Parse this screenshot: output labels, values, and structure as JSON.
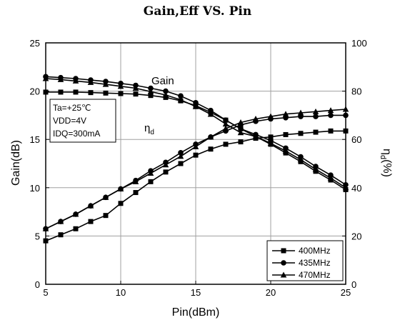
{
  "chart_data": {
    "type": "line",
    "title": "Gain,Eff  VS. Pin",
    "xlabel": "Pin(dBm)",
    "ylabel_left": "Gain(dB)",
    "ylabel_right_main": "η",
    "ylabel_right_sub": "d",
    "ylabel_right_suffix": "(%)",
    "xlim": [
      5,
      25
    ],
    "ylim_left": [
      0,
      25
    ],
    "ylim_right": [
      0,
      100
    ],
    "x_ticks": [
      "5",
      "10",
      "15",
      "20",
      "25"
    ],
    "y_left_ticks": [
      "0",
      "5",
      "10",
      "15",
      "20",
      "25"
    ],
    "y_right_ticks": [
      "0",
      "20",
      "40",
      "60",
      "80",
      "100"
    ],
    "grid": true,
    "legend_position": "bottom-right",
    "conditions": [
      "Ta=+25℃",
      "VDD=4V",
      "IDQ=300mA"
    ],
    "annotations": {
      "gain": "Gain",
      "eff_main": "η",
      "eff_sub": "d"
    },
    "x": [
      5,
      6,
      7,
      8,
      9,
      10,
      11,
      12,
      13,
      14,
      15,
      16,
      17,
      18,
      19,
      20,
      21,
      22,
      23,
      24,
      25
    ],
    "series": [
      {
        "name": "400MHz",
        "marker": "square",
        "gain": [
          19.9,
          19.9,
          19.9,
          19.85,
          19.8,
          19.75,
          19.7,
          19.55,
          19.35,
          19.0,
          18.5,
          17.8,
          17.0,
          16.1,
          15.3,
          14.5,
          13.6,
          12.7,
          11.7,
          10.8,
          9.8
        ],
        "eff": [
          18,
          20.5,
          23,
          26,
          28.5,
          33.5,
          38,
          42.5,
          46.5,
          50,
          53.5,
          56,
          58,
          59,
          60.5,
          61,
          62,
          62.5,
          63,
          63.5,
          63.5
        ]
      },
      {
        "name": "435MHz",
        "marker": "circle",
        "gain": [
          21.5,
          21.4,
          21.3,
          21.15,
          21.0,
          20.8,
          20.6,
          20.3,
          20.0,
          19.5,
          18.8,
          18.0,
          17.0,
          16.1,
          15.5,
          14.9,
          14.1,
          13.2,
          12.2,
          11.3,
          10.3
        ],
        "eff": [
          23,
          26,
          29,
          32.5,
          36,
          39.5,
          43,
          47,
          50.5,
          54.5,
          58,
          61,
          63.5,
          66,
          67.5,
          68.5,
          69,
          69.5,
          69.5,
          70,
          70
        ]
      },
      {
        "name": "470MHz",
        "marker": "triangle",
        "gain": [
          21.3,
          21.2,
          21.05,
          20.9,
          20.7,
          20.5,
          20.3,
          19.95,
          19.6,
          19.1,
          18.4,
          17.6,
          16.6,
          15.7,
          15.3,
          14.6,
          13.8,
          12.9,
          11.9,
          11.0,
          10.0
        ],
        "eff": [
          23,
          26,
          29,
          32.5,
          36,
          39.5,
          42.5,
          46,
          49.5,
          53,
          57,
          61,
          64.5,
          67,
          68.5,
          69.5,
          70.5,
          71,
          71.5,
          72,
          72.5
        ]
      }
    ]
  }
}
